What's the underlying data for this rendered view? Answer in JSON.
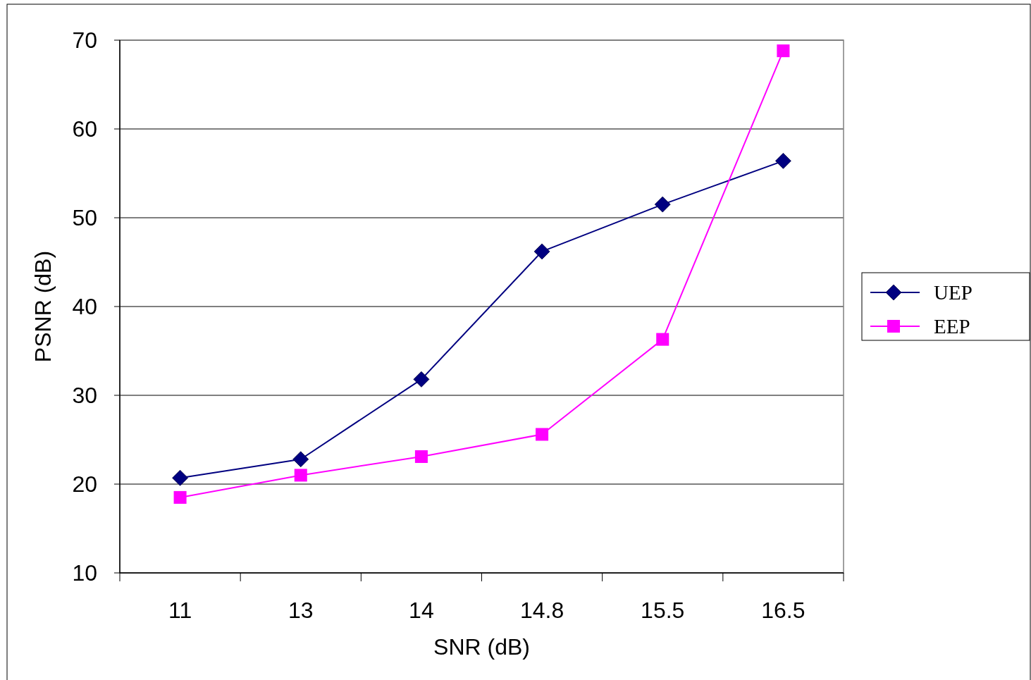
{
  "chart_data": {
    "type": "line",
    "xlabel": "SNR (dB)",
    "ylabel": "PSNR (dB)",
    "categories": [
      "11",
      "13",
      "14",
      "14.8",
      "15.5",
      "16.5"
    ],
    "series": [
      {
        "name": "UEP",
        "color": "#000080",
        "marker": "diamond",
        "values": [
          20.7,
          22.8,
          31.8,
          46.2,
          51.5,
          56.4
        ]
      },
      {
        "name": "EEP",
        "color": "#ff00ff",
        "marker": "square",
        "values": [
          18.5,
          21.0,
          23.1,
          25.6,
          36.3,
          68.8
        ]
      }
    ],
    "ylim": [
      10,
      70
    ],
    "yticks": [
      10,
      20,
      30,
      40,
      50,
      60,
      70
    ],
    "grid": "y",
    "legend": "right",
    "line_style": "solid"
  }
}
